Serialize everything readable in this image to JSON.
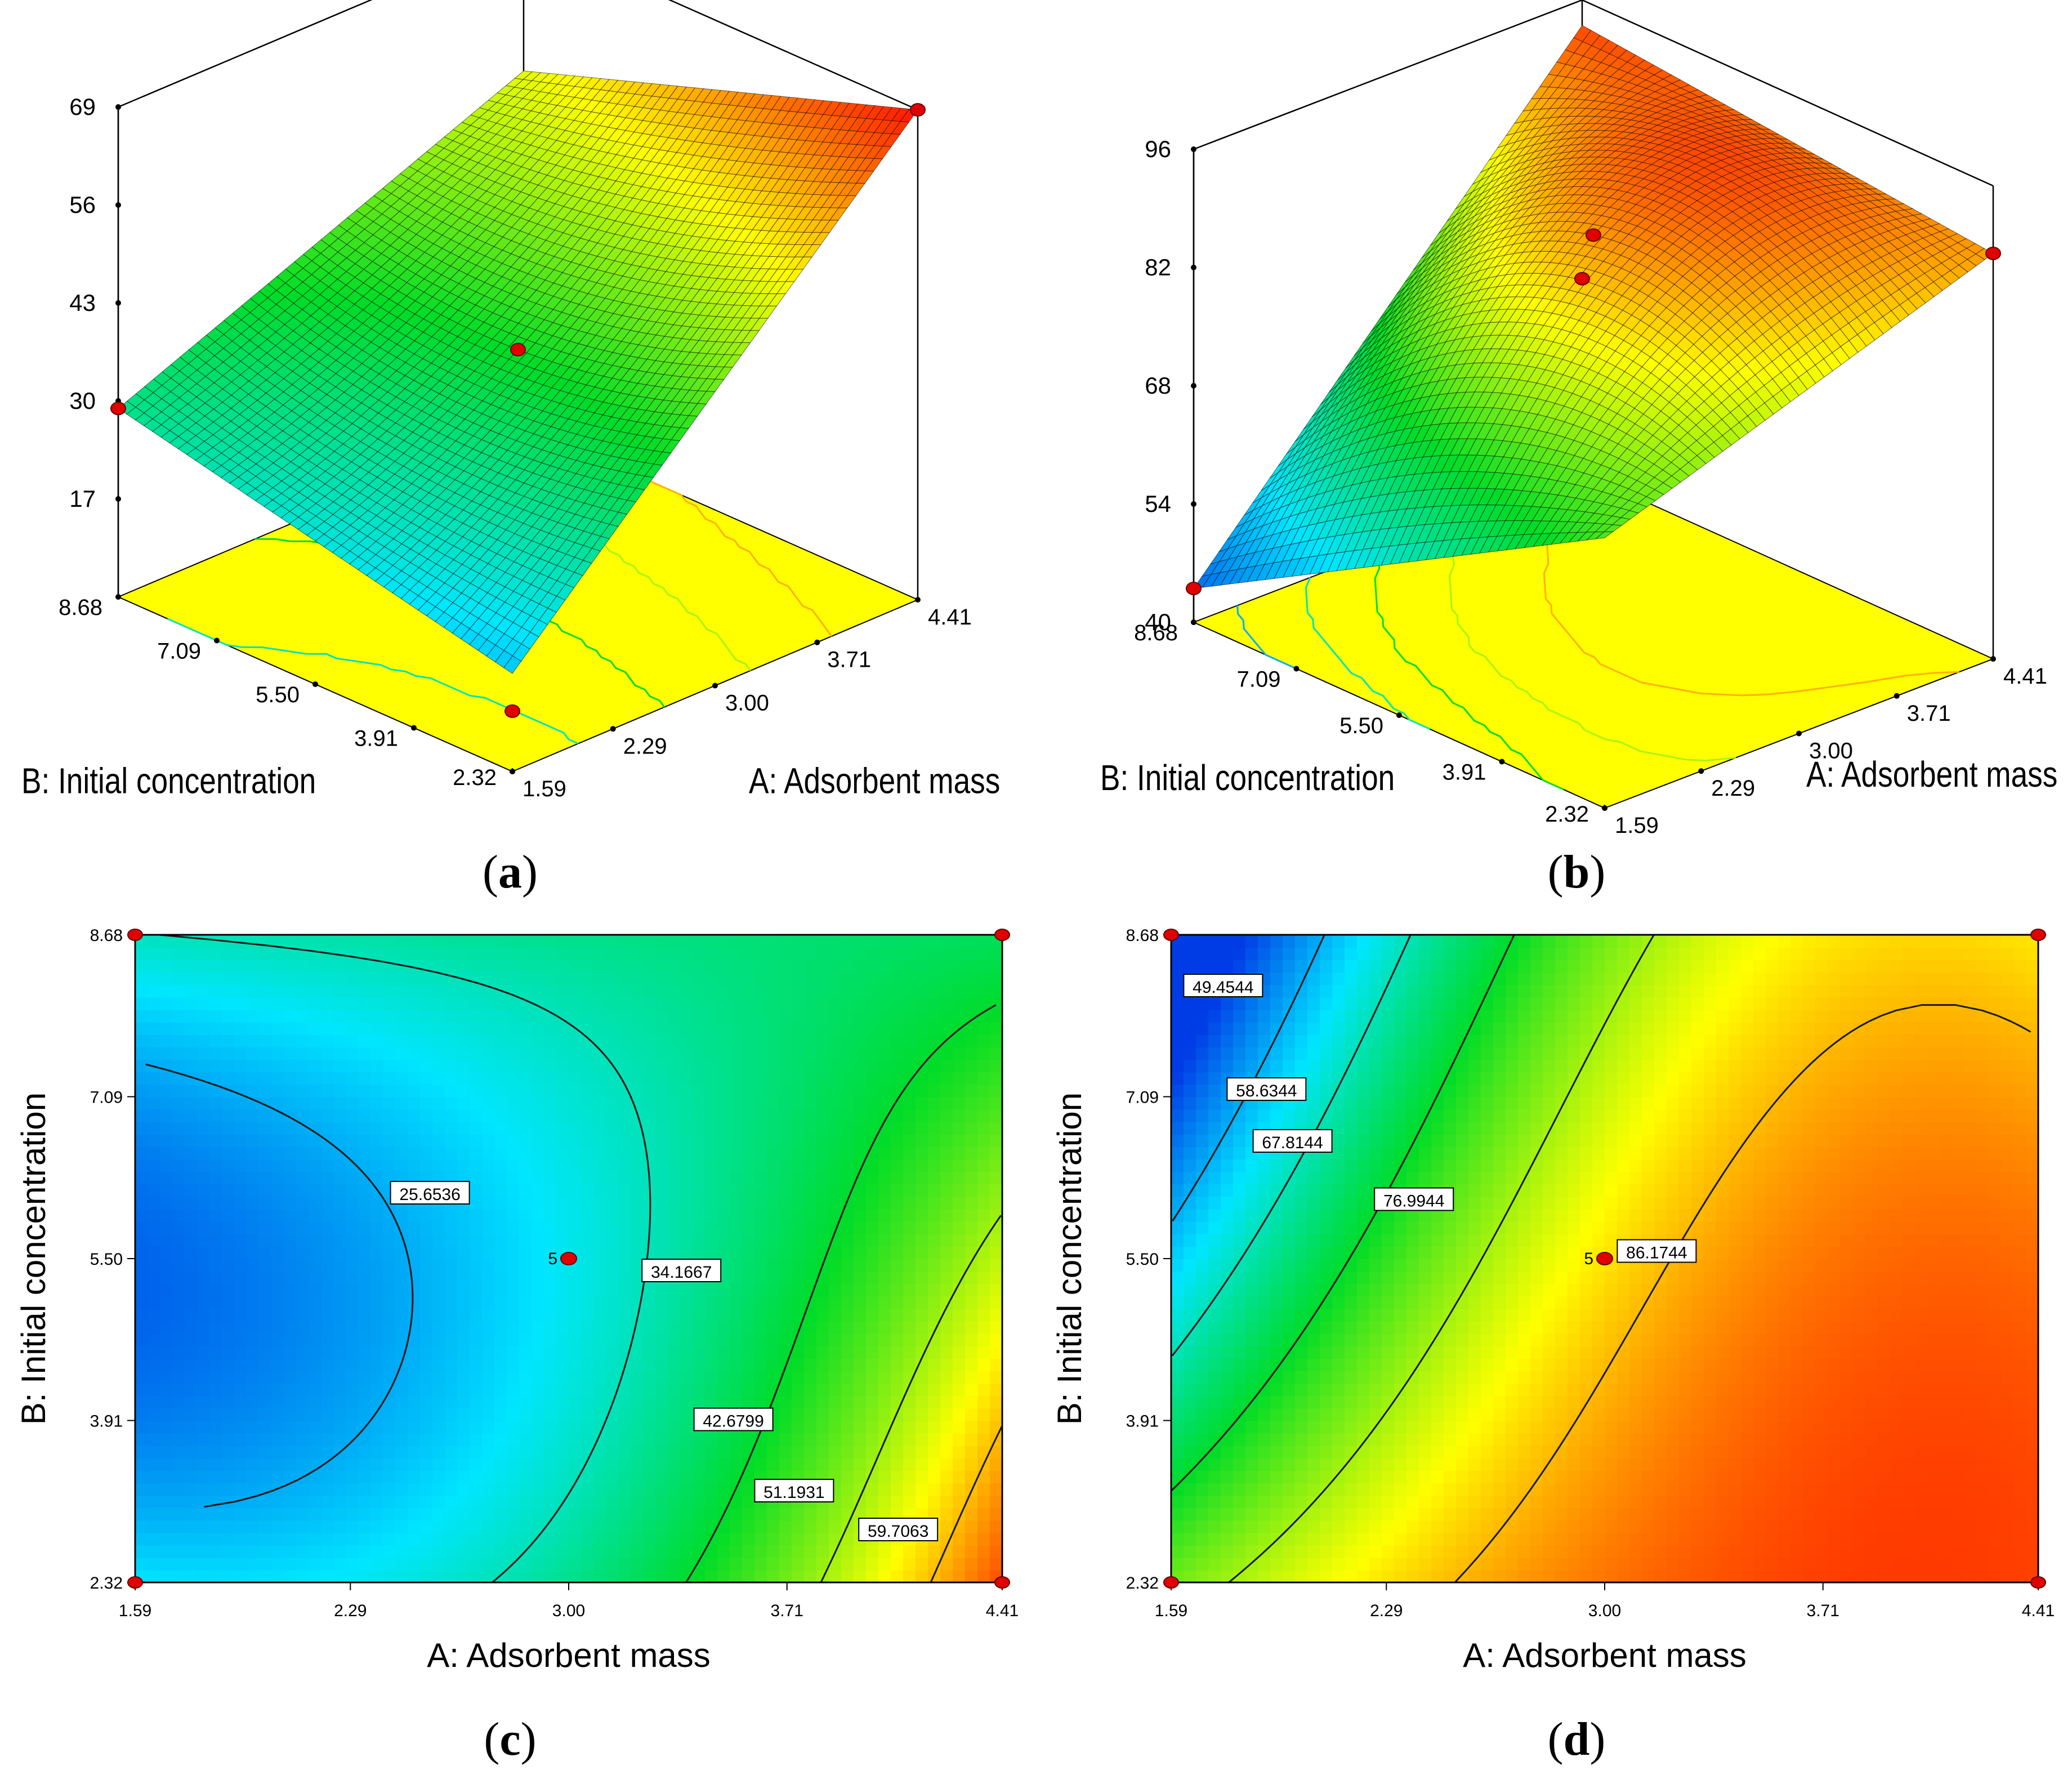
{
  "figure": {
    "captions": {
      "a": "a",
      "b": "b",
      "c": "c",
      "d": "d"
    }
  },
  "colors": {
    "base_yellow": "#ffff00",
    "frame": "#000000",
    "design_point": "#e00000",
    "design_point_light": "#f4b6b6"
  },
  "chart_data": [
    {
      "id": "a",
      "type": "surface3d",
      "x_label": "A: Adsorbent mass",
      "y_label": "B: Initial concentration",
      "x_ticks": [
        "1.59",
        "2.29",
        "3.00",
        "3.71",
        "4.41"
      ],
      "y_ticks": [
        "2.32",
        "3.91",
        "5.50",
        "7.09",
        "8.68"
      ],
      "z_ticks": [
        "17",
        "30",
        "43",
        "56",
        "69"
      ],
      "xlim": [
        1.59,
        4.41
      ],
      "ylim": [
        2.32,
        8.68
      ],
      "zlim": [
        4,
        69
      ],
      "corner_values": {
        "lowA_lowB": 17,
        "highA_lowB": 69,
        "lowA_highB": 29,
        "highA_highB": 51,
        "center": 37
      },
      "design_points": [
        {
          "A": 4.41,
          "B": 2.32,
          "z": 69
        },
        {
          "A": 1.59,
          "B": 8.68,
          "z": 29
        },
        {
          "A": 3.0,
          "B": 5.5,
          "z": 37
        },
        {
          "A": 1.59,
          "B": 2.32,
          "z": 12
        }
      ]
    },
    {
      "id": "b",
      "type": "surface3d",
      "x_label": "A: Adsorbent mass",
      "y_label": "B: Initial concentration",
      "x_ticks": [
        "1.59",
        "2.29",
        "3.00",
        "3.71",
        "4.41"
      ],
      "y_ticks": [
        "2.32",
        "3.91",
        "5.50",
        "7.09",
        "8.68"
      ],
      "z_ticks": [
        "40",
        "54",
        "68",
        "82",
        "96"
      ],
      "xlim": [
        1.59,
        4.41
      ],
      "ylim": [
        2.32,
        8.68
      ],
      "zlim": [
        40,
        96
      ],
      "corner_values": {
        "lowA_lowB": 72,
        "highA_lowB": 88,
        "lowA_highB": 44,
        "highA_highB": 93,
        "center": 88
      },
      "design_points": [
        {
          "A": 1.59,
          "B": 8.68,
          "z": 44
        },
        {
          "A": 3.0,
          "B": 5.5,
          "z": 88
        },
        {
          "A": 4.41,
          "B": 2.32,
          "z": 88
        },
        {
          "A": 4.41,
          "B": 8.68,
          "z": 63
        }
      ]
    },
    {
      "id": "c",
      "type": "contour",
      "x_label": "A: Adsorbent mass",
      "y_label": "B: Initial concentration",
      "x_ticks": [
        "1.59",
        "2.29",
        "3.00",
        "3.71",
        "4.41"
      ],
      "y_ticks": [
        "2.32",
        "3.91",
        "5.50",
        "7.09",
        "8.68"
      ],
      "xlim": [
        1.59,
        4.41
      ],
      "ylim": [
        2.32,
        8.68
      ],
      "range": [
        17,
        69
      ],
      "contour_levels": [
        "25.6536",
        "34.1667",
        "42.6799",
        "51.1931",
        "59.7063"
      ],
      "center_point": {
        "A": 3.0,
        "B": 5.5,
        "label": "5"
      },
      "design_points": [
        {
          "A": 1.59,
          "B": 2.32
        },
        {
          "A": 4.41,
          "B": 2.32
        },
        {
          "A": 1.59,
          "B": 8.68
        },
        {
          "A": 4.41,
          "B": 8.68
        }
      ]
    },
    {
      "id": "d",
      "type": "contour",
      "x_label": "A: Adsorbent mass",
      "y_label": "B: Initial concentration",
      "x_ticks": [
        "1.59",
        "2.29",
        "3.00",
        "3.71",
        "4.41"
      ],
      "y_ticks": [
        "2.32",
        "3.91",
        "5.50",
        "7.09",
        "8.68"
      ],
      "xlim": [
        1.59,
        4.41
      ],
      "ylim": [
        2.32,
        8.68
      ],
      "range": [
        40,
        96
      ],
      "contour_levels": [
        "49.4544",
        "58.6344",
        "67.8144",
        "76.9944",
        "86.1744"
      ],
      "center_point": {
        "A": 3.0,
        "B": 5.5,
        "label": "5"
      },
      "design_points": [
        {
          "A": 1.59,
          "B": 2.32
        },
        {
          "A": 4.41,
          "B": 2.32
        },
        {
          "A": 1.59,
          "B": 8.68
        },
        {
          "A": 4.41,
          "B": 8.68
        }
      ]
    }
  ]
}
